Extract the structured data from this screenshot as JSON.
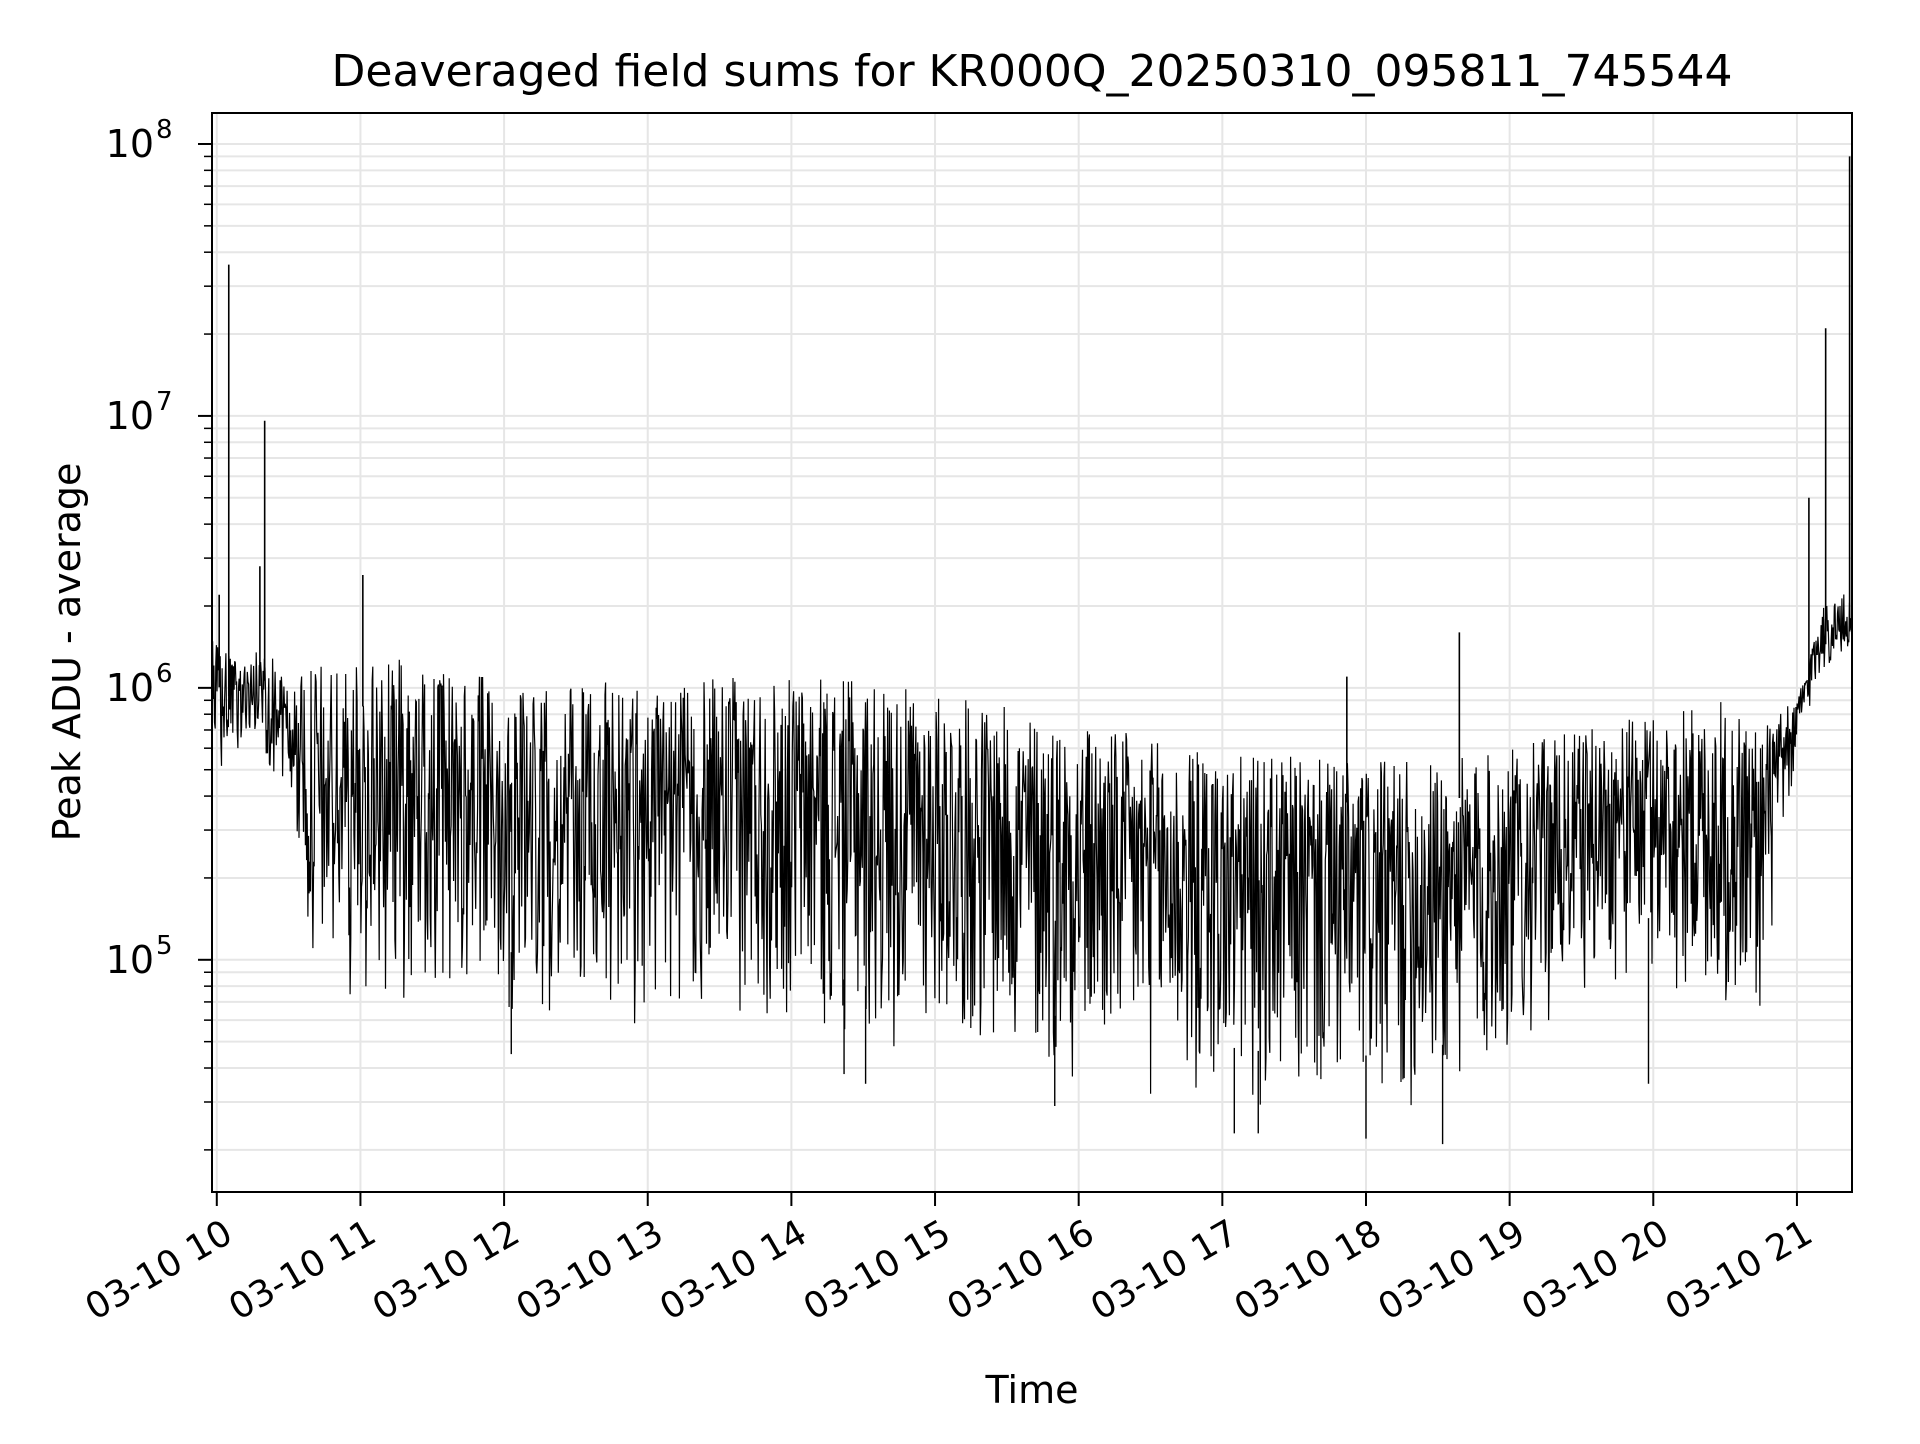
{
  "chart_data": {
    "type": "line",
    "title": "Deaveraged field sums for KR000Q_20250310_095811_745544",
    "xlabel": "Time",
    "ylabel": "Peak ADU - average",
    "y_scale": "log",
    "x_ticks": [
      "03-10 10",
      "03-10 11",
      "03-10 12",
      "03-10 13",
      "03-10 14",
      "03-10 15",
      "03-10 16",
      "03-10 17",
      "03-10 18",
      "03-10 19",
      "03-10 20",
      "03-10 21"
    ],
    "y_ticks": [
      {
        "value": 100000,
        "base": "10",
        "exp": "5"
      },
      {
        "value": 1000000,
        "base": "10",
        "exp": "6"
      },
      {
        "value": 10000000,
        "base": "10",
        "exp": "7"
      },
      {
        "value": 100000000,
        "base": "10",
        "exp": "8"
      }
    ],
    "xlim": [
      "2025-03-10 09:58",
      "2025-03-10 21:23"
    ],
    "ylim": [
      14000,
      130000000
    ],
    "grid": true,
    "legend": "none",
    "line_color": "#000000",
    "grid_color": "#e6e6e6",
    "envelope": {
      "x": [
        "2025-03-10 09:58",
        "2025-03-10 10:10",
        "2025-03-10 10:20",
        "2025-03-10 10:30",
        "2025-03-10 10:40",
        "2025-03-10 10:50",
        "2025-03-10 11:00",
        "2025-03-10 11:15",
        "2025-03-10 11:30",
        "2025-03-10 11:45",
        "2025-03-10 12:00",
        "2025-03-10 12:15",
        "2025-03-10 12:30",
        "2025-03-10 12:45",
        "2025-03-10 13:00",
        "2025-03-10 13:15",
        "2025-03-10 13:30",
        "2025-03-10 13:45",
        "2025-03-10 14:00",
        "2025-03-10 14:15",
        "2025-03-10 14:30",
        "2025-03-10 14:45",
        "2025-03-10 15:00",
        "2025-03-10 15:15",
        "2025-03-10 15:30",
        "2025-03-10 15:45",
        "2025-03-10 16:00",
        "2025-03-10 16:15",
        "2025-03-10 16:30",
        "2025-03-10 16:45",
        "2025-03-10 17:00",
        "2025-03-10 17:15",
        "2025-03-10 17:30",
        "2025-03-10 17:45",
        "2025-03-10 18:00",
        "2025-03-10 18:15",
        "2025-03-10 18:30",
        "2025-03-10 18:45",
        "2025-03-10 19:00",
        "2025-03-10 19:15",
        "2025-03-10 19:30",
        "2025-03-10 19:45",
        "2025-03-10 20:00",
        "2025-03-10 20:15",
        "2025-03-10 20:30",
        "2025-03-10 20:45",
        "2025-03-10 21:00",
        "2025-03-10 21:10",
        "2025-03-10 21:23"
      ],
      "upper": [
        1500000,
        1200000,
        1500000,
        1000000,
        1200000,
        1200000,
        1200000,
        1300000,
        1200000,
        1100000,
        1100000,
        1000000,
        1000000,
        1100000,
        1000000,
        1000000,
        1100000,
        1100000,
        1100000,
        1100000,
        1050000,
        1000000,
        950000,
        900000,
        850000,
        800000,
        750000,
        700000,
        650000,
        600000,
        580000,
        560000,
        560000,
        540000,
        530000,
        540000,
        550000,
        560000,
        600000,
        650000,
        700000,
        750000,
        800000,
        850000,
        900000,
        750000,
        900000,
        2000000,
        2300000
      ],
      "lower": [
        400000,
        600000,
        500000,
        400000,
        80000,
        70000,
        70000,
        65000,
        65000,
        65000,
        60000,
        60000,
        55000,
        55000,
        55000,
        55000,
        55000,
        55000,
        55000,
        50000,
        45000,
        45000,
        50000,
        45000,
        40000,
        35000,
        35000,
        32000,
        30000,
        28000,
        27000,
        26000,
        26000,
        25000,
        25000,
        26000,
        27000,
        30000,
        40000,
        55000,
        70000,
        80000,
        80000,
        65000,
        55000,
        55000,
        550000,
        1100000,
        1200000
      ]
    },
    "spikes": [
      {
        "x": "2025-03-10 10:05",
        "y": 36000000
      },
      {
        "x": "2025-03-10 10:20",
        "y": 9600000
      },
      {
        "x": "2025-03-10 10:18",
        "y": 2800000
      },
      {
        "x": "2025-03-10 10:01",
        "y": 2200000
      },
      {
        "x": "2025-03-10 11:01",
        "y": 2600000
      },
      {
        "x": "2025-03-10 18:39",
        "y": 1600000
      },
      {
        "x": "2025-03-10 17:52",
        "y": 1100000
      },
      {
        "x": "2025-03-10 21:05",
        "y": 5000000
      },
      {
        "x": "2025-03-10 21:12",
        "y": 21000000
      },
      {
        "x": "2025-03-10 21:22",
        "y": 90000000
      }
    ],
    "dips": [
      {
        "x": "2025-03-10 12:03",
        "y": 45000
      },
      {
        "x": "2025-03-10 14:22",
        "y": 38000
      },
      {
        "x": "2025-03-10 14:31",
        "y": 35000
      },
      {
        "x": "2025-03-10 15:50",
        "y": 29000
      },
      {
        "x": "2025-03-10 17:05",
        "y": 23000
      },
      {
        "x": "2025-03-10 17:15",
        "y": 23000
      },
      {
        "x": "2025-03-10 18:32",
        "y": 21000
      },
      {
        "x": "2025-03-10 18:00",
        "y": 22000
      },
      {
        "x": "2025-03-10 19:58",
        "y": 35000
      }
    ]
  }
}
